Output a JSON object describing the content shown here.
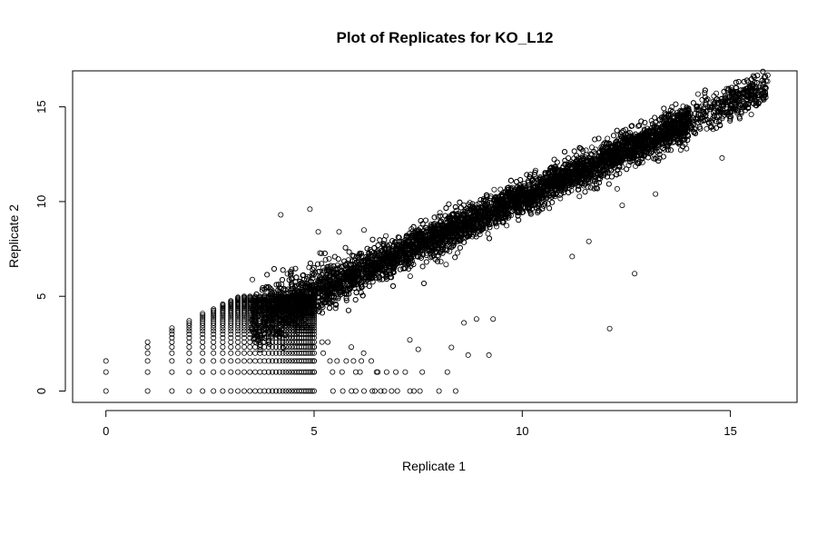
{
  "chart_data": {
    "type": "scatter",
    "title": "Plot of Replicates for KO_L12",
    "xlabel": "Replicate 1",
    "ylabel": "Replicate 2",
    "xlim": [
      -0.8,
      16.6
    ],
    "ylim": [
      -0.6,
      16.9
    ],
    "xticks": [
      0,
      5,
      10,
      15
    ],
    "yticks": [
      0,
      5,
      10,
      15
    ],
    "grid": false,
    "marker": "open-circle",
    "discrete_levels": [
      0,
      1,
      1.585,
      2,
      2.322,
      2.585,
      2.807,
      3,
      3.17,
      3.322,
      3.459,
      3.585,
      3.7,
      3.807,
      3.907,
      4,
      4.087,
      4.17,
      4.248,
      4.322,
      4.392,
      4.459,
      4.524,
      4.585,
      4.644,
      4.7,
      4.755,
      4.807,
      4.858,
      4.907,
      4.954,
      5
    ],
    "core_band": {
      "x_range": [
        3.5,
        15.9
      ],
      "slope": 1.0,
      "intercept": 0.2,
      "spread": 0.45
    },
    "outliers": [
      {
        "x": 4.2,
        "y": 9.3
      },
      {
        "x": 4.9,
        "y": 9.6
      },
      {
        "x": 5.1,
        "y": 8.4
      },
      {
        "x": 5.6,
        "y": 8.4
      },
      {
        "x": 6.2,
        "y": 8.5
      },
      {
        "x": 12.1,
        "y": 3.3
      },
      {
        "x": 12.7,
        "y": 6.2
      },
      {
        "x": 14.8,
        "y": 12.3
      },
      {
        "x": 15.8,
        "y": 16.3
      },
      {
        "x": 15.8,
        "y": 15.5
      },
      {
        "x": 15.5,
        "y": 14.6
      },
      {
        "x": 11.2,
        "y": 7.1
      },
      {
        "x": 11.6,
        "y": 7.9
      },
      {
        "x": 9.2,
        "y": 1.9
      },
      {
        "x": 8.7,
        "y": 1.9
      },
      {
        "x": 8.3,
        "y": 2.3
      },
      {
        "x": 7.5,
        "y": 2.2
      },
      {
        "x": 8.9,
        "y": 3.8
      },
      {
        "x": 9.3,
        "y": 3.8
      },
      {
        "x": 8.6,
        "y": 3.6
      },
      {
        "x": 12.4,
        "y": 9.8
      },
      {
        "x": 13.2,
        "y": 10.4
      },
      {
        "x": 7.3,
        "y": 2.7
      },
      {
        "x": 6.0,
        "y": 0
      },
      {
        "x": 6.2,
        "y": 0
      },
      {
        "x": 6.4,
        "y": 0
      },
      {
        "x": 6.6,
        "y": 0
      },
      {
        "x": 7.0,
        "y": 0
      },
      {
        "x": 7.4,
        "y": 0
      },
      {
        "x": 8.0,
        "y": 0
      },
      {
        "x": 8.4,
        "y": 0
      },
      {
        "x": 8.2,
        "y": 1.0
      },
      {
        "x": 7.6,
        "y": 1.0
      },
      {
        "x": 6.5,
        "y": 1.0
      },
      {
        "x": 6.0,
        "y": 1.0
      }
    ]
  }
}
